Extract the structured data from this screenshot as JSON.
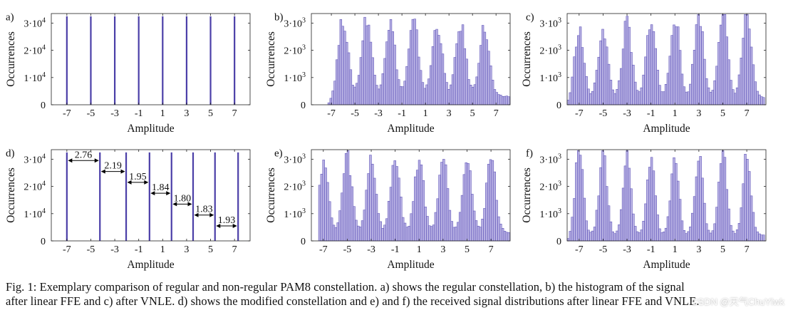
{
  "figure": {
    "caption_line1": "Fig. 1: Exemplary comparison of regular and non-regular PAM8 constellation. a) shows the regular constellation, b) the histogram of the signal",
    "caption_line2": "after linear FFE and c) after VNLE. d) shows the modified constellation and e) and f) the received signal distributions after linear FFE and VNLE.",
    "watermark": "CSDN @天气ChuYlwk"
  },
  "colors": {
    "bar": "#4b3fa8",
    "hist_fill": "#b7b0e3",
    "hist_stroke": "#5a4fb6",
    "axis": "#222222"
  },
  "chart_data": [
    {
      "id": "a",
      "panel_label": "a)",
      "type": "bar",
      "title": "",
      "xlabel": "Amplitude",
      "ylabel": "Occurrences",
      "xlim": [
        -8.3,
        8.3
      ],
      "ylim": [
        0,
        33500
      ],
      "xticks": [
        -7,
        -5,
        -3,
        -1,
        1,
        3,
        5,
        7
      ],
      "xtick_labels": [
        "-7",
        "-5",
        "-3",
        "-1",
        "1",
        "3",
        "5",
        "7"
      ],
      "yticks": [
        0,
        10000,
        20000,
        30000
      ],
      "ytick_labels": [
        "0",
        "1·10",
        "2·10",
        "3·10"
      ],
      "ytick_exp": "4",
      "x": [
        -7,
        -5,
        -3,
        -1,
        1,
        3,
        5,
        7
      ],
      "values": [
        32500,
        32500,
        32500,
        32500,
        32500,
        32500,
        32500,
        32500
      ]
    },
    {
      "id": "b",
      "panel_label": "b)",
      "type": "histogram",
      "title": "",
      "xlabel": "Amplitude",
      "ylabel": "Occurrences",
      "xlim": [
        -8.7,
        8.2
      ],
      "ylim": [
        0,
        3350
      ],
      "xticks": [
        -7,
        -5,
        -3,
        -1,
        1,
        3,
        5,
        7
      ],
      "xtick_labels": [
        "-7",
        "-5",
        "-3",
        "-1",
        "1",
        "3",
        "5",
        "7"
      ],
      "yticks": [
        0,
        1000,
        2000,
        3000
      ],
      "ytick_labels": [
        "0",
        "1·10",
        "2·10",
        "3·10"
      ],
      "ytick_exp": "3",
      "peaks": [
        -6,
        -4,
        -2,
        0,
        2,
        4,
        6
      ],
      "peak_heights": [
        2900,
        2950,
        2750,
        2750,
        2700,
        2650,
        2550
      ],
      "peak_sigma": 0.42,
      "valley_floor": 320,
      "bin_width": 0.17,
      "support": [
        -7.3,
        8.2
      ]
    },
    {
      "id": "c",
      "panel_label": "c)",
      "type": "histogram",
      "title": "",
      "xlabel": "Amplitude",
      "ylabel": "Occurrences",
      "xlim": [
        -8.0,
        8.6
      ],
      "ylim": [
        0,
        3350
      ],
      "xticks": [
        -7,
        -5,
        -3,
        -1,
        1,
        3,
        5,
        7
      ],
      "xtick_labels": [
        "-7",
        "-5",
        "-3",
        "-1",
        "1",
        "3",
        "5",
        "7"
      ],
      "yticks": [
        0,
        1000,
        2000,
        3000
      ],
      "ytick_labels": [
        "0",
        "1·10",
        "2·10",
        "3·10"
      ],
      "ytick_exp": "3",
      "peaks": [
        -7,
        -5,
        -3,
        -1,
        1,
        3,
        5,
        7
      ],
      "peak_heights": [
        2550,
        2600,
        2800,
        2950,
        3050,
        3150,
        3200,
        3150
      ],
      "peak_sigma": 0.38,
      "valley_floor": 280,
      "bin_width": 0.17,
      "support": [
        -8.0,
        8.6
      ]
    },
    {
      "id": "d",
      "panel_label": "d)",
      "type": "bar",
      "title": "",
      "xlabel": "Amplitude",
      "ylabel": "Occurrences",
      "xlim": [
        -8.3,
        8.3
      ],
      "ylim": [
        0,
        33500
      ],
      "xticks": [
        -7,
        -5,
        -3,
        -1,
        1,
        3,
        5,
        7
      ],
      "xtick_labels": [
        "-7",
        "-5",
        "-3",
        "-1",
        "1",
        "3",
        "5",
        "7"
      ],
      "yticks": [
        0,
        10000,
        20000,
        30000
      ],
      "ytick_labels": [
        "0",
        "1·10",
        "2·10",
        "3·10"
      ],
      "ytick_exp": "4",
      "x": [
        -7.0,
        -4.24,
        -2.05,
        -0.1,
        1.74,
        3.54,
        5.37,
        7.3
      ],
      "values": [
        32500,
        32500,
        32500,
        32500,
        32500,
        32500,
        32500,
        32500
      ],
      "spacing_labels": [
        "2.76",
        "2.19",
        "1.95",
        "1.84",
        "1.80",
        "1.83",
        "1.93"
      ],
      "spacing_y": [
        29500,
        25500,
        21500,
        17500,
        13500,
        9500,
        5500
      ]
    },
    {
      "id": "e",
      "panel_label": "e)",
      "type": "histogram",
      "title": "",
      "xlabel": "Amplitude",
      "ylabel": "Occurrences",
      "xlim": [
        -8.0,
        8.6
      ],
      "ylim": [
        0,
        3350
      ],
      "xticks": [
        -7,
        -5,
        -3,
        -1,
        1,
        3,
        5,
        7
      ],
      "xtick_labels": [
        "-7",
        "-5",
        "-3",
        "-1",
        "1",
        "3",
        "5",
        "7"
      ],
      "yticks": [
        0,
        1000,
        2000,
        3000
      ],
      "ytick_labels": [
        "0",
        "1·10",
        "2·10",
        "3·10"
      ],
      "ytick_exp": "3",
      "peaks": [
        -7,
        -5,
        -3,
        -1,
        1,
        3,
        5,
        7
      ],
      "peak_heights": [
        2850,
        2850,
        2800,
        2800,
        2800,
        2800,
        2800,
        2850
      ],
      "peak_sigma": 0.38,
      "valley_floor": 330,
      "bin_width": 0.17,
      "support": [
        -7.4,
        8.6
      ]
    },
    {
      "id": "f",
      "panel_label": "f)",
      "type": "histogram",
      "title": "",
      "xlabel": "Amplitude",
      "ylabel": "Occurrences",
      "xlim": [
        -8.0,
        8.6
      ],
      "ylim": [
        0,
        3350
      ],
      "xticks": [
        -7,
        -5,
        -3,
        -1,
        1,
        3,
        5,
        7
      ],
      "xtick_labels": [
        "-7",
        "-5",
        "-3",
        "-1",
        "1",
        "3",
        "5",
        "7"
      ],
      "yticks": [
        0,
        1000,
        2000,
        3000
      ],
      "ytick_labels": [
        "0",
        "1·10",
        "2·10",
        "3·10"
      ],
      "ytick_exp": "3",
      "peaks": [
        -7,
        -5,
        -3,
        -1,
        1,
        3,
        5,
        7
      ],
      "peak_heights": [
        3150,
        3000,
        3000,
        2950,
        2950,
        2950,
        3000,
        3050
      ],
      "peak_sigma": 0.33,
      "valley_floor": 240,
      "bin_width": 0.17,
      "support": [
        -8.0,
        8.6
      ]
    }
  ]
}
